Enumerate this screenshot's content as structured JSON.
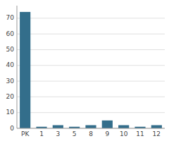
{
  "chart_data": {
    "type": "bar",
    "categories": [
      "PK",
      "1",
      "3",
      "5",
      "8",
      "9",
      "10",
      "11",
      "12"
    ],
    "values": [
      74,
      1,
      2,
      1,
      2,
      5,
      2,
      1,
      2
    ],
    "color": "#336e8b",
    "ylim": [
      0,
      78
    ],
    "yticks": [
      0,
      10,
      20,
      30,
      40,
      50,
      60,
      70
    ],
    "grid": true
  }
}
